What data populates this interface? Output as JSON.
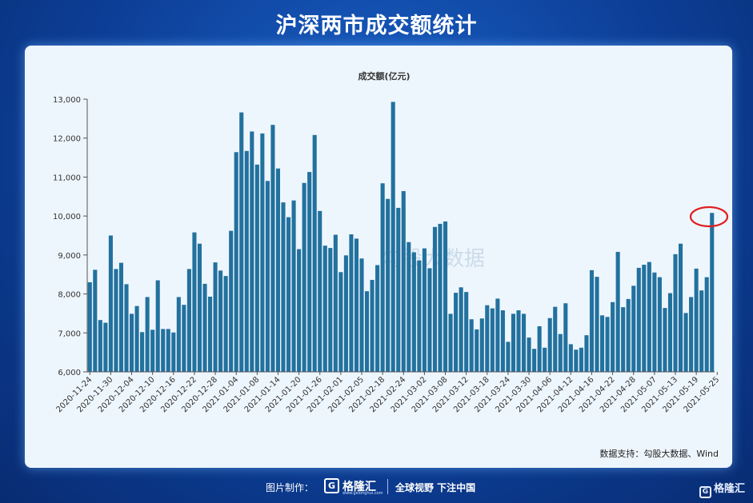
{
  "header": {
    "title": "沪深两市成交额统计"
  },
  "source": "数据支持：勾股大数据、Wind",
  "footer": {
    "credit": "图片制作：",
    "logo": "格隆汇",
    "logo_url": "www.gelonghui.com",
    "slogan": "全球视野 下注中国"
  },
  "corner_logo": "格隆汇",
  "watermark": "勾股大数据",
  "colors": {
    "bar": "#22719e",
    "highlight": "#e02020",
    "axis": "#333333"
  },
  "chart_data": {
    "type": "bar",
    "title": "成交额(亿元)",
    "ylim": [
      6000,
      13000
    ],
    "yticks": [
      6000,
      7000,
      8000,
      9000,
      10000,
      11000,
      12000,
      13000
    ],
    "ytick_labels": [
      "6,000",
      "7,000",
      "8,000",
      "9,000",
      "10,000",
      "11,000",
      "12,000",
      "13,000"
    ],
    "xtick_labels": [
      "2020-11-24",
      "2020-11-30",
      "2020-12-04",
      "2020-12-10",
      "2020-12-16",
      "2020-12-22",
      "2020-12-28",
      "2021-01-04",
      "2021-01-08",
      "2021-01-14",
      "2021-01-20",
      "2021-01-26",
      "2021-02-01",
      "2021-02-05",
      "2021-02-18",
      "2021-02-24",
      "2021-03-02",
      "2021-03-08",
      "2021-03-12",
      "2021-03-18",
      "2021-03-24",
      "2021-03-30",
      "2021-04-06",
      "2021-04-12",
      "2021-04-16",
      "2021-04-22",
      "2021-04-28",
      "2021-05-07",
      "2021-05-13",
      "2021-05-19",
      "2021-05-25"
    ],
    "values": [
      8300,
      8620,
      7330,
      7260,
      9500,
      8640,
      8800,
      8250,
      7490,
      7690,
      7020,
      7920,
      7080,
      8350,
      7100,
      7100,
      7010,
      7920,
      7720,
      8640,
      9580,
      9290,
      8260,
      7930,
      8810,
      8600,
      8460,
      9620,
      11640,
      12660,
      11670,
      12170,
      11320,
      12120,
      10900,
      12340,
      11220,
      10350,
      9970,
      10400,
      9150,
      10850,
      11130,
      12080,
      10130,
      9240,
      9180,
      9520,
      8560,
      8990,
      9530,
      9420,
      8910,
      8070,
      8360,
      8740,
      10840,
      10440,
      12930,
      10210,
      10640,
      9330,
      9070,
      8860,
      9170,
      8660,
      9720,
      9800,
      9860,
      7490,
      8030,
      8170,
      8050,
      7350,
      7090,
      7370,
      7710,
      7630,
      7880,
      7580,
      6770,
      7490,
      7580,
      7490,
      6880,
      6590,
      7170,
      6620,
      7380,
      7670,
      6970,
      7760,
      6710,
      6570,
      6620,
      6940,
      8610,
      8440,
      7450,
      7410,
      7790,
      9080,
      7660,
      7870,
      8210,
      8670,
      8750,
      8820,
      8550,
      8430,
      7640,
      8020,
      9020,
      9290,
      7510,
      7920,
      8650,
      8090,
      8430,
      10080
    ]
  }
}
